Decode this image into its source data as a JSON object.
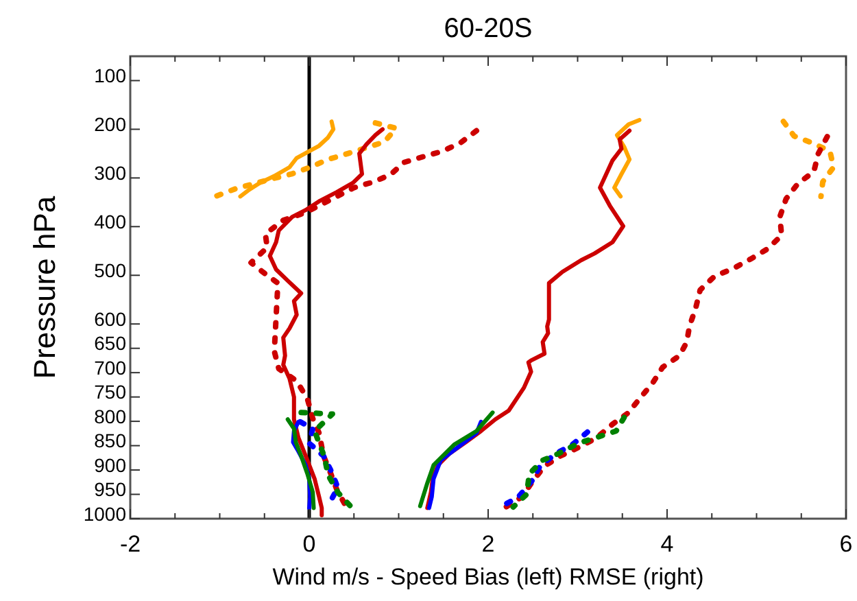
{
  "chart_data": {
    "type": "line",
    "title": "60-20S",
    "xlabel": "Wind m/s - Speed Bias (left) RMSE (right)",
    "ylabel": "Pressure hPa",
    "xlim": [
      -2,
      6
    ],
    "xticks": [
      -2,
      {
        "value": -1.5,
        "label": null
      },
      {
        "value": -1,
        "label": null
      },
      {
        "value": -0.5,
        "label": null
      },
      0,
      {
        "value": 0.5,
        "label": null
      },
      {
        "value": 1,
        "label": null
      },
      {
        "value": 1.5,
        "label": null
      },
      2,
      {
        "value": 2.5,
        "label": null
      },
      {
        "value": 3,
        "label": null
      },
      {
        "value": 3.5,
        "label": null
      },
      4,
      {
        "value": 4.5,
        "label": null
      },
      {
        "value": 5,
        "label": null
      },
      {
        "value": 5.5,
        "label": null
      },
      6
    ],
    "ylim": [
      1000,
      50
    ],
    "yticks": [
      100,
      200,
      300,
      400,
      500,
      600,
      650,
      700,
      750,
      800,
      850,
      900,
      950,
      1000
    ],
    "grid": false,
    "marker": "none",
    "ref_lines": [
      {
        "axis": "x",
        "value": 0,
        "color": "#000000",
        "line_style": "solid"
      }
    ],
    "series": [
      {
        "color": "#ffa500",
        "line_style": "dotted",
        "x": [
          0.74,
          0.97,
          0.84,
          0.43,
          0.21,
          0.01,
          -0.2,
          -0.4,
          -0.82,
          -1.05
        ],
        "values": [
          187,
          198,
          226,
          250,
          262,
          278,
          292,
          301,
          322,
          338
        ]
      },
      {
        "color": "#ffa500",
        "line_style": "solid",
        "x": [
          0.25,
          0.27,
          0.21,
          0.11,
          0.0,
          -0.14,
          -0.22,
          -0.39,
          -0.55,
          -0.67,
          -0.77
        ],
        "values": [
          184,
          200,
          217,
          234,
          245,
          259,
          278,
          296,
          310,
          324,
          338
        ]
      },
      {
        "color": "#cc0000",
        "line_style": "dotted",
        "x": [
          1.87,
          1.69,
          1.49,
          1.28,
          1.06,
          0.91,
          0.72,
          0.5,
          -0.04,
          -0.29,
          -0.49,
          -0.47,
          -0.65,
          -0.52,
          -0.35,
          -0.39,
          -0.34,
          -0.14,
          -0.02,
          0.04,
          0.11,
          0.16,
          0.24,
          0.31,
          0.41
        ],
        "values": [
          203,
          228,
          245,
          256,
          268,
          293,
          308,
          320,
          371,
          387,
          415,
          443,
          474,
          493,
          516,
          656,
          692,
          717,
          754,
          794,
          824,
          871,
          907,
          941,
          974
        ]
      },
      {
        "color": "#cc0000",
        "line_style": "solid",
        "x": [
          0.82,
          0.74,
          0.64,
          0.56,
          0.59,
          0.49,
          0.31,
          0.11,
          -0.04,
          -0.19,
          -0.34,
          -0.37,
          -0.44,
          -0.37,
          -0.24,
          -0.09,
          -0.17,
          -0.14,
          -0.22,
          -0.29,
          -0.27,
          -0.29,
          -0.22,
          -0.17,
          -0.17,
          -0.12,
          -0.02,
          0.06,
          0.11,
          0.14,
          0.14
        ],
        "values": [
          200,
          212,
          231,
          250,
          292,
          310,
          329,
          348,
          366,
          380,
          408,
          432,
          460,
          488,
          511,
          537,
          553,
          581,
          609,
          628,
          665,
          684,
          712,
          750,
          796,
          834,
          880,
          918,
          955,
          978,
          993
        ]
      },
      {
        "color": "#0000ff",
        "line_style": "dotted",
        "x": [
          -0.1,
          0.04,
          0.0,
          0.16,
          0.25,
          0.32,
          0.21
        ],
        "values": [
          801,
          815,
          845,
          871,
          904,
          936,
          974
        ]
      },
      {
        "color": "#0000ff",
        "line_style": "solid",
        "x": [
          -0.12,
          -0.17,
          -0.18,
          -0.12,
          -0.04,
          0.0,
          0.01,
          0.0
        ],
        "values": [
          801,
          820,
          843,
          862,
          890,
          918,
          955,
          978
        ]
      },
      {
        "color": "#008000",
        "line_style": "dotted",
        "x": [
          -0.09,
          0.26,
          0.06,
          0.17,
          0.21,
          0.32,
          0.47
        ],
        "values": [
          782,
          785,
          820,
          873,
          910,
          946,
          976
        ]
      },
      {
        "color": "#008000",
        "line_style": "solid",
        "x": [
          -0.24,
          -0.17,
          -0.15,
          -0.09,
          -0.02,
          0.04,
          0.05
        ],
        "values": [
          796,
          815,
          843,
          871,
          908,
          946,
          978
        ]
      },
      {
        "color": "#ffa500",
        "line_style": "dotted",
        "x": [
          5.3,
          5.42,
          5.62,
          5.82,
          5.86,
          5.74,
          5.72
        ],
        "values": [
          184,
          214,
          228,
          245,
          278,
          308,
          338
        ]
      },
      {
        "color": "#ffa500",
        "line_style": "solid",
        "x": [
          3.69,
          3.57,
          3.44,
          3.52,
          3.58,
          3.49,
          3.41,
          3.48
        ],
        "values": [
          181,
          190,
          212,
          236,
          262,
          292,
          320,
          338
        ]
      },
      {
        "color": "#cc0000",
        "line_style": "dotted",
        "x": [
          5.79,
          5.69,
          5.64,
          5.46,
          5.33,
          5.26,
          5.28,
          5.12,
          4.93,
          4.74,
          4.53,
          4.37,
          4.32,
          4.25,
          4.22,
          4.14,
          3.95,
          3.84,
          3.69,
          3.57,
          3.39,
          3.21,
          3.03,
          2.81,
          2.63,
          2.49,
          2.38,
          2.2
        ],
        "values": [
          215,
          250,
          287,
          312,
          343,
          380,
          418,
          446,
          467,
          486,
          502,
          530,
          567,
          605,
          637,
          665,
          689,
          721,
          754,
          782,
          806,
          834,
          852,
          871,
          892,
          925,
          955,
          976
        ]
      },
      {
        "color": "#cc0000",
        "line_style": "solid",
        "x": [
          3.58,
          3.47,
          3.49,
          3.39,
          3.25,
          3.36,
          3.51,
          3.39,
          3.19,
          3.04,
          2.83,
          2.68,
          2.68,
          2.66,
          2.67,
          2.61,
          2.63,
          2.48,
          2.45,
          2.48,
          2.4,
          2.23,
          2.08,
          1.92,
          1.75,
          1.57,
          1.44,
          1.38,
          1.36,
          1.32
        ],
        "values": [
          203,
          221,
          240,
          264,
          320,
          357,
          399,
          432,
          455,
          469,
          493,
          516,
          591,
          605,
          619,
          637,
          661,
          675,
          679,
          698,
          731,
          778,
          796,
          820,
          843,
          866,
          890,
          918,
          946,
          978
        ]
      },
      {
        "color": "#0000ff",
        "line_style": "dotted",
        "x": [
          3.11,
          2.94,
          2.76,
          2.58,
          2.49,
          2.34,
          2.14
        ],
        "values": [
          822,
          848,
          866,
          892,
          922,
          955,
          976
        ]
      },
      {
        "color": "#0000ff",
        "line_style": "solid",
        "x": [
          1.92,
          1.87,
          1.67,
          1.47,
          1.39,
          1.37,
          1.34
        ],
        "values": [
          801,
          824,
          852,
          880,
          918,
          955,
          978
        ]
      },
      {
        "color": "#008000",
        "line_style": "dotted",
        "x": [
          3.52,
          3.43,
          3.01,
          2.79,
          2.61,
          2.46,
          2.43,
          2.28
        ],
        "values": [
          792,
          820,
          845,
          866,
          880,
          908,
          950,
          976
        ]
      },
      {
        "color": "#008000",
        "line_style": "solid",
        "x": [
          2.05,
          1.87,
          1.62,
          1.39,
          1.32,
          1.24
        ],
        "values": [
          782,
          820,
          848,
          890,
          927,
          974
        ]
      }
    ]
  }
}
